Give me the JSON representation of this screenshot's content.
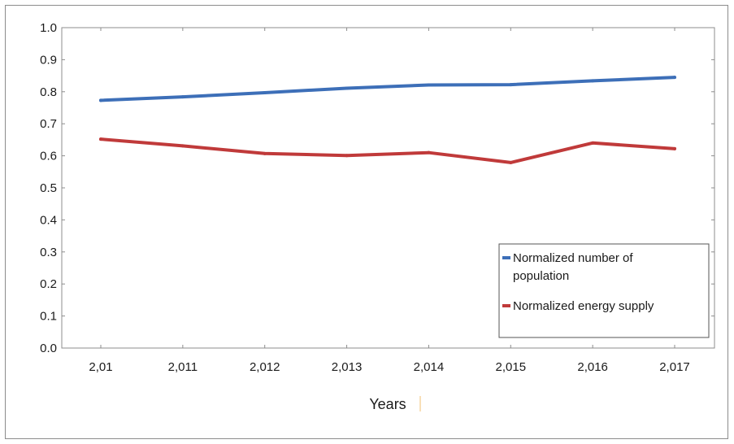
{
  "chart_data": {
    "type": "line",
    "x": [
      "2,01",
      "2,011",
      "2,012",
      "2,013",
      "2,014",
      "2,015",
      "2,016",
      "2,017"
    ],
    "xlabel": "Years",
    "ylabel": "",
    "ylim": [
      0,
      1
    ],
    "yticks": [
      "0.0",
      "0.1",
      "0.2",
      "0.3",
      "0.4",
      "0.5",
      "0.6",
      "0.7",
      "0.8",
      "0.9",
      "1.0"
    ],
    "grid": false,
    "legend_position": "bottom-right",
    "series": [
      {
        "name": "Normalized number of population",
        "legend_lines": [
          "Normalized number of",
          "population"
        ],
        "color": "#3d6fb8",
        "values": [
          0.773,
          0.784,
          0.797,
          0.811,
          0.821,
          0.822,
          0.834,
          0.845
        ]
      },
      {
        "name": "Normalized energy supply",
        "legend_lines": [
          "Normalized energy supply"
        ],
        "color": "#c03a3a",
        "values": [
          0.652,
          0.631,
          0.607,
          0.601,
          0.61,
          0.579,
          0.64,
          0.622
        ]
      }
    ]
  }
}
